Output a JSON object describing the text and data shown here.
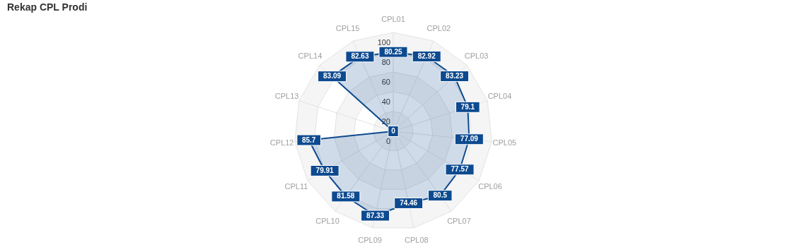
{
  "chart_data": {
    "type": "radar",
    "title": "Rekap CPL Prodi",
    "categories": [
      "CPL01",
      "CPL02",
      "CPL03",
      "CPL04",
      "CPL05",
      "CPL06",
      "CPL07",
      "CPL08",
      "CPL09",
      "CPL10",
      "CPL11",
      "CPL12",
      "CPL13",
      "CPL14",
      "CPL15"
    ],
    "series": [
      {
        "color": "#0d4a8f",
        "values": [
          80.25,
          82.92,
          83.23,
          79.1,
          77.09,
          77.57,
          80.5,
          74.46,
          87.33,
          81.58,
          79.91,
          85.7,
          0,
          83.09,
          82.63
        ]
      }
    ],
    "ylim": [
      0,
      100
    ],
    "yticks": [
      0,
      20,
      40,
      60,
      80,
      100
    ],
    "grid": true,
    "data_labels": true
  }
}
